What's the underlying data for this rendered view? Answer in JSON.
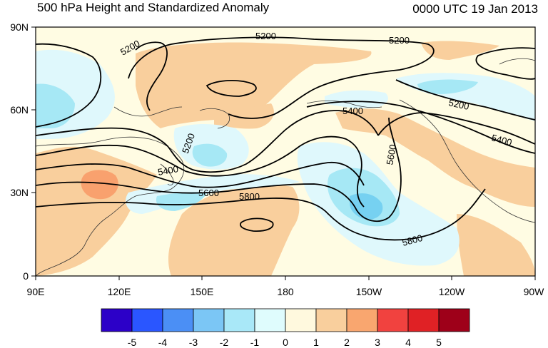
{
  "header": {
    "title": "500 hPa Height and Standardized Anomaly",
    "timestamp": "0000 UTC 19 Jan 2013"
  },
  "map": {
    "projection": "cylindrical-equidistant",
    "lon_range": [
      90,
      270
    ],
    "lat_range": [
      0,
      90
    ],
    "lon_ticks": [
      "90E",
      "120E",
      "150E",
      "180",
      "150W",
      "120W",
      "90W"
    ],
    "lat_ticks": [
      "90N",
      "60N",
      "30N",
      "0"
    ],
    "contour_labels": [
      "5200",
      "5200",
      "5200",
      "5200",
      "5400",
      "5400",
      "5400",
      "5600",
      "5600",
      "5800",
      "5800",
      "5200"
    ],
    "colors": {
      "neutral": "#fffce3",
      "pos1": "#f9cf9d",
      "pos2": "#f9a16e",
      "neg1": "#dff8fc",
      "neg2": "#a6e8f5",
      "neg3": "#76d1f1"
    }
  },
  "colorbar": {
    "labels": [
      "-5",
      "-4",
      "-3",
      "-2",
      "-1",
      "0",
      "1",
      "2",
      "3",
      "4",
      "5"
    ],
    "colors": [
      "#2c00c8",
      "#2a56ff",
      "#4b8ff5",
      "#7bc6f5",
      "#a9e8f8",
      "#dffcfd",
      "#fff9de",
      "#f9cf9d",
      "#f9a66f",
      "#f1423f",
      "#e02125",
      "#9e0019"
    ]
  }
}
